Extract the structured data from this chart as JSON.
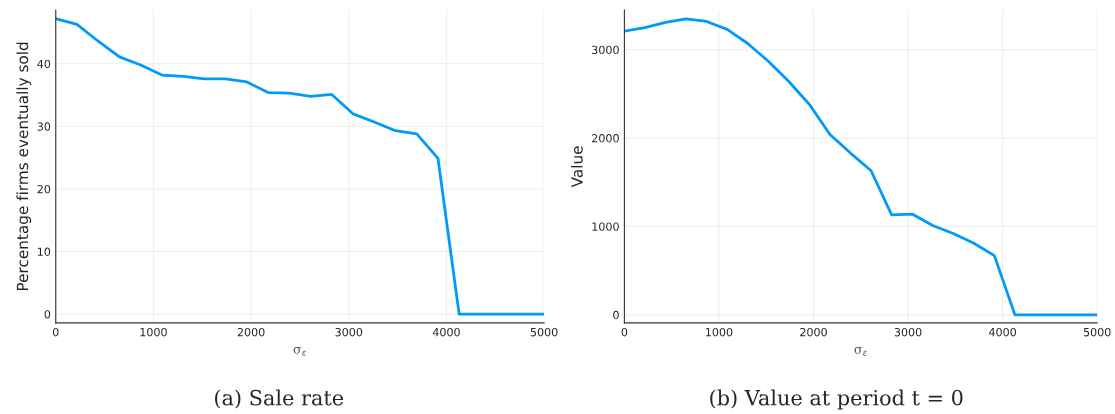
{
  "chart_data": [
    {
      "type": "line",
      "xlabel": "σ$_{ε}$",
      "ylabel": "Percentage firms eventually sold",
      "annotations": [
        "(a) Sale rate"
      ],
      "x": [
        0,
        217,
        435,
        652,
        870,
        1087,
        1304,
        1522,
        1739,
        1957,
        2174,
        2391,
        2609,
        2826,
        3043,
        3261,
        3478,
        3696,
        3913,
        4130,
        5000
      ],
      "series": [
        {
          "color": "#009af9",
          "values": [
            47.2,
            46.3,
            43.6,
            41.1,
            39.8,
            38.2,
            38.0,
            37.6,
            37.6,
            37.1,
            35.4,
            35.3,
            34.8,
            35.1,
            32.0,
            30.7,
            29.3,
            28.8,
            24.9,
            0,
            0
          ]
        }
      ],
      "xlim": [
        0,
        5000
      ],
      "xticks": [
        0,
        1000,
        2000,
        3000,
        4000,
        5000
      ],
      "ylim": [
        -1.4,
        48.6
      ],
      "yticks": [
        0,
        10,
        20,
        30,
        40
      ],
      "grid": true
    },
    {
      "type": "line",
      "xlabel": "σ$_{ε}$",
      "ylabel": "Value",
      "annotations": [
        "(b) Value at period t = 0"
      ],
      "x": [
        0,
        217,
        435,
        652,
        870,
        1087,
        1304,
        1522,
        1739,
        1957,
        2174,
        2391,
        2609,
        2826,
        3043,
        3261,
        3478,
        3696,
        3913,
        4130,
        5000
      ],
      "series": [
        {
          "color": "#009af9",
          "values": [
            3210,
            3250,
            3310,
            3350,
            3320,
            3230,
            3070,
            2870,
            2640,
            2380,
            2040,
            1830,
            1630,
            1130,
            1140,
            1010,
            920,
            810,
            670,
            0,
            0
          ]
        }
      ],
      "xlim": [
        0,
        5000
      ],
      "xticks": [
        0,
        1000,
        2000,
        3000,
        4000,
        5000
      ],
      "ylim": [
        -92,
        3450
      ],
      "yticks": [
        0,
        1000,
        2000,
        3000
      ],
      "grid": true
    }
  ]
}
